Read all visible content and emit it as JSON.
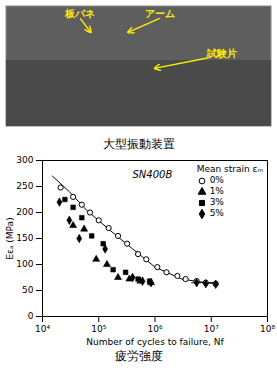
{
  "chart_data": {
    "type": "scatter",
    "title": "疲労強度",
    "xlabel": "Number of cycles to failure, Nf",
    "ylabel": "Eεₐ (MPa)",
    "legend_title": "Mean strain εₘ",
    "legend": "upper right",
    "grid": false,
    "log": "x",
    "xlim": [
      10000,
      100000000
    ],
    "xticks": [
      {
        "value": 10000,
        "label": "10⁴"
      },
      {
        "value": 100000,
        "label": "10⁵"
      },
      {
        "value": 1000000,
        "label": "10⁶"
      },
      {
        "value": 10000000,
        "label": "10⁷"
      },
      {
        "value": 100000000,
        "label": "10⁸"
      }
    ],
    "ylim": [
      0,
      300
    ],
    "yticks": [
      0,
      50,
      100,
      150,
      200,
      250,
      300
    ],
    "annotations": [
      {
        "text": "SN400B"
      },
      {
        "text": "大型振動装置"
      },
      {
        "text": "板バネ",
        "color": "#ffee00"
      },
      {
        "text": "アーム",
        "color": "#ffee00"
      },
      {
        "text": "試験片",
        "color": "#ffee00"
      }
    ],
    "series": [
      {
        "type": "line",
        "color": "#000000",
        "x": [
          15000.0,
          30000.0,
          60000.0,
          150000.0,
          400000.0,
          1000000.0,
          3000000.0,
          8000000.0,
          13000000.0
        ],
        "values": [
          270,
          240,
          205,
          168,
          130,
          95,
          72,
          65,
          63
        ]
      },
      {
        "type": "line",
        "color": "#000000",
        "x": [
          4500000.0,
          13000000.0
        ],
        "values": [
          65,
          65
        ]
      },
      {
        "name": "0%",
        "type": "scatter",
        "marker": "open_circle",
        "color": "#000000",
        "x": [
          21000.0,
          35000.0,
          50000.0,
          70000.0,
          100000.0,
          150000.0,
          220000.0,
          320000.0,
          500000.0,
          700000.0,
          1100000.0,
          1600000.0,
          2500000.0,
          3500000.0,
          5500000.0,
          8000000.0,
          12000000.0
        ],
        "values": [
          248,
          230,
          215,
          200,
          185,
          170,
          155,
          140,
          120,
          110,
          95,
          85,
          78,
          72,
          68,
          65,
          63
        ]
      },
      {
        "name": "1%",
        "type": "scatter",
        "marker": "triangle",
        "color": "#000000",
        "x": [
          35000.0,
          55000.0,
          90000.0,
          140000.0,
          220000.0,
          350000.0,
          550000.0,
          850000.0
        ],
        "values": [
          175,
          168,
          110,
          100,
          75,
          72,
          68,
          65
        ]
      },
      {
        "name": "3%",
        "type": "scatter",
        "marker": "square",
        "color": "#000000",
        "x": [
          25000.0,
          35000.0,
          50000.0,
          75000.0,
          120000.0,
          180000.0,
          300000.0,
          500000.0,
          800000.0
        ],
        "values": [
          225,
          210,
          190,
          155,
          140,
          90,
          85,
          72,
          68
        ]
      },
      {
        "name": "5%",
        "type": "scatter",
        "marker": "diamond",
        "color": "#000000",
        "x": [
          20000.0,
          30000.0,
          45000.0,
          130000.0,
          400000.0,
          600000.0,
          850000.0,
          5500000.0,
          8000000.0,
          12000000.0
        ],
        "values": [
          220,
          185,
          150,
          130,
          75,
          68,
          65,
          65,
          63,
          62
        ]
      }
    ]
  }
}
